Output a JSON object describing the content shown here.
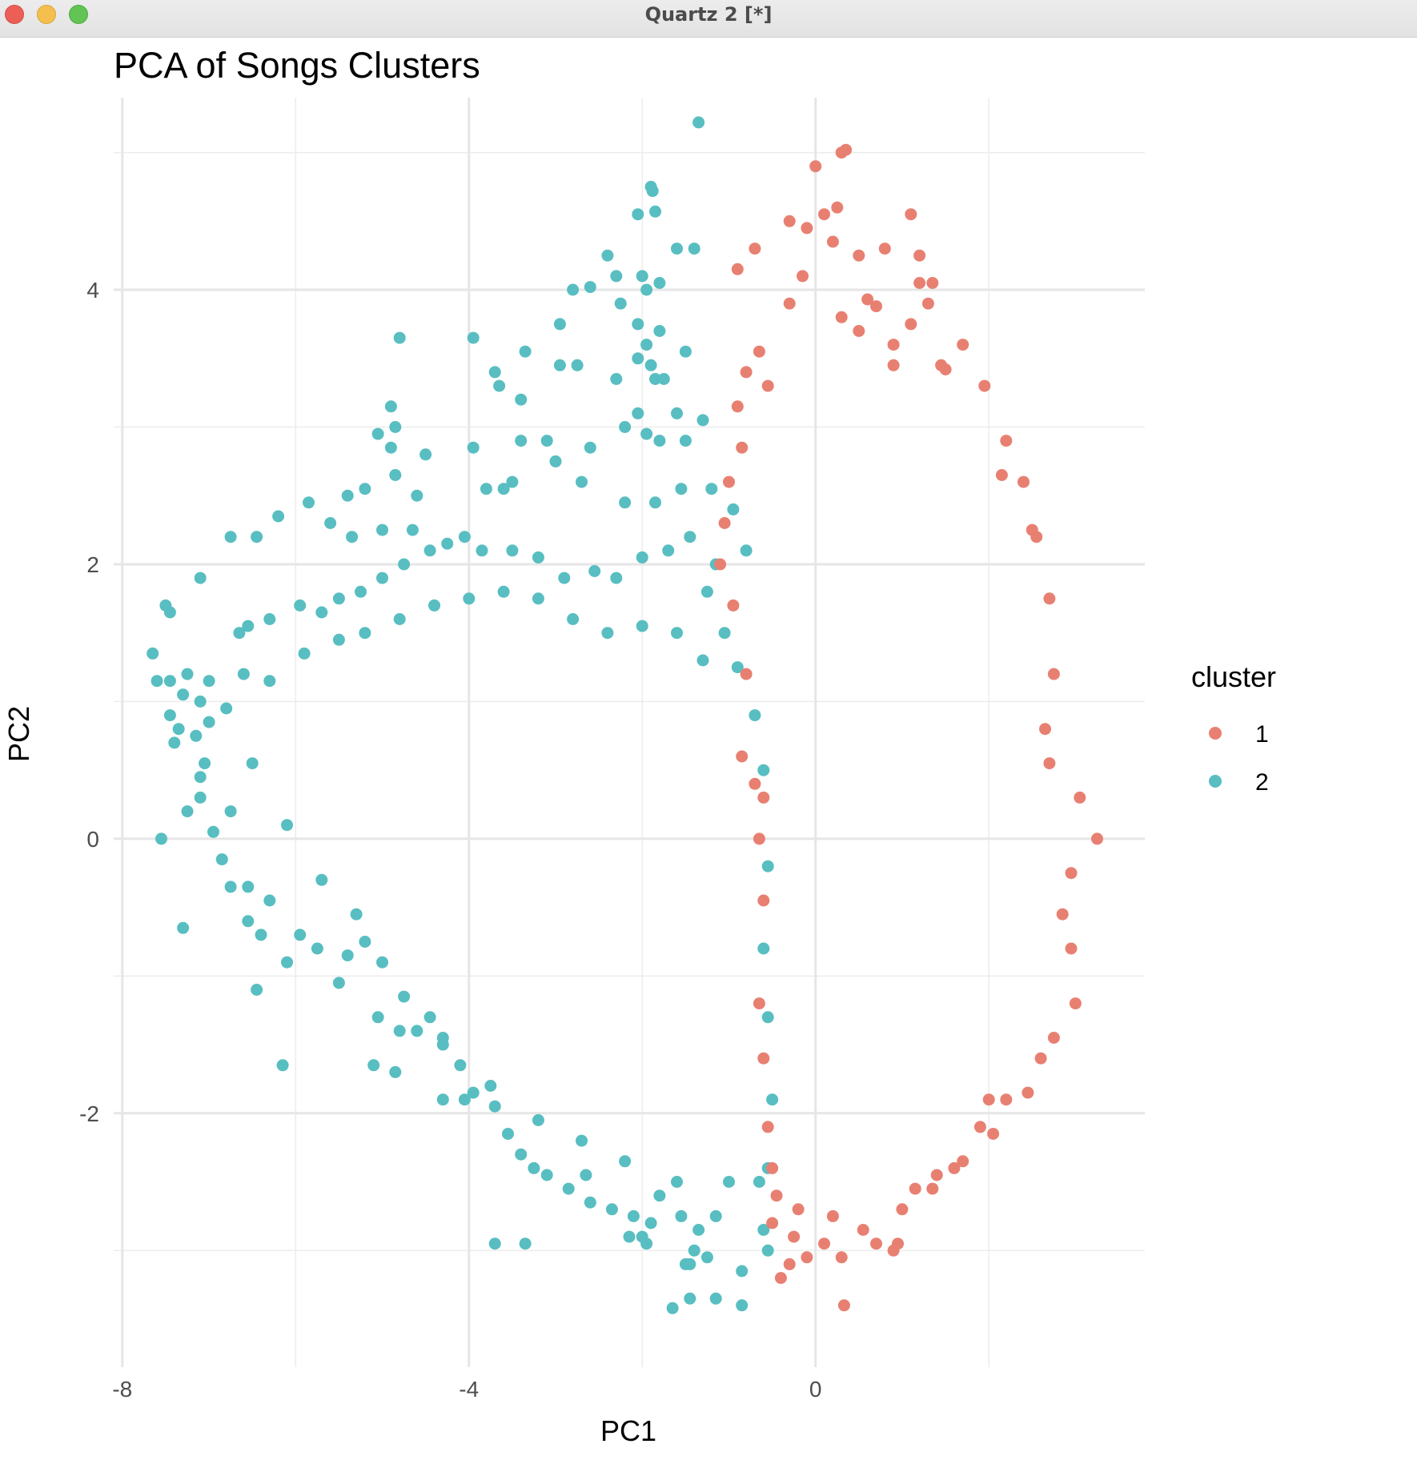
{
  "window": {
    "title": "Quartz 2 [*]"
  },
  "chart_data": {
    "type": "scatter",
    "title": "PCA of Songs Clusters",
    "xlabel": "PC1",
    "ylabel": "PC2",
    "xlim": [
      -8.1,
      3.8
    ],
    "ylim": [
      -3.85,
      5.4
    ],
    "xticks": [
      -8,
      -4,
      0
    ],
    "yticks": [
      -2,
      0,
      2,
      4
    ],
    "grid": true,
    "legend": {
      "title": "cluster",
      "placement": "right",
      "entries": [
        "1",
        "2"
      ]
    },
    "series": [
      {
        "name": "1",
        "color": "#E88072",
        "points": [
          [
            0,
            4.9
          ],
          [
            0.3,
            5.0
          ],
          [
            0.35,
            5.02
          ],
          [
            1.1,
            4.55
          ],
          [
            0.5,
            4.25
          ],
          [
            1.2,
            4.25
          ],
          [
            1.2,
            4.05
          ],
          [
            -0.7,
            4.3
          ],
          [
            -0.9,
            4.15
          ],
          [
            -0.3,
            4.5
          ],
          [
            0.1,
            4.55
          ],
          [
            -0.1,
            4.45
          ],
          [
            0.2,
            4.35
          ],
          [
            0.6,
            3.93
          ],
          [
            0.7,
            3.88
          ],
          [
            1.45,
            3.45
          ],
          [
            1.5,
            3.42
          ],
          [
            1.7,
            3.6
          ],
          [
            1.95,
            3.3
          ],
          [
            2.2,
            2.9
          ],
          [
            2.15,
            2.65
          ],
          [
            2.4,
            2.6
          ],
          [
            2.5,
            2.25
          ],
          [
            2.55,
            2.2
          ],
          [
            2.7,
            1.75
          ],
          [
            2.75,
            1.2
          ],
          [
            2.65,
            0.8
          ],
          [
            2.7,
            0.55
          ],
          [
            3.05,
            0.3
          ],
          [
            3.25,
            0.0
          ],
          [
            2.95,
            -0.25
          ],
          [
            2.85,
            -0.55
          ],
          [
            2.95,
            -0.8
          ],
          [
            3.0,
            -1.2
          ],
          [
            2.75,
            -1.45
          ],
          [
            2.6,
            -1.6
          ],
          [
            2.45,
            -1.85
          ],
          [
            2.0,
            -1.9
          ],
          [
            2.05,
            -2.15
          ],
          [
            1.7,
            -2.35
          ],
          [
            1.35,
            -2.55
          ],
          [
            1.0,
            -2.7
          ],
          [
            0.95,
            -2.95
          ],
          [
            0.9,
            -3.0
          ],
          [
            0.7,
            -2.95
          ],
          [
            0.55,
            -2.85
          ],
          [
            0.3,
            -3.05
          ],
          [
            0.33,
            -3.4
          ],
          [
            0.1,
            -2.95
          ],
          [
            -0.1,
            -3.05
          ],
          [
            -0.3,
            -3.1
          ],
          [
            -0.4,
            -3.2
          ],
          [
            -0.25,
            -2.9
          ],
          [
            -0.5,
            -2.8
          ],
          [
            1.6,
            -2.4
          ],
          [
            1.4,
            -2.45
          ],
          [
            1.15,
            -2.55
          ],
          [
            1.9,
            -2.1
          ],
          [
            2.2,
            -1.9
          ],
          [
            -0.9,
            3.15
          ],
          [
            -0.8,
            3.4
          ],
          [
            -0.65,
            3.55
          ],
          [
            -0.55,
            3.3
          ],
          [
            -0.85,
            2.85
          ],
          [
            -1.0,
            2.6
          ],
          [
            -1.05,
            2.3
          ],
          [
            -1.1,
            2.0
          ],
          [
            -0.95,
            1.7
          ],
          [
            -0.8,
            1.2
          ],
          [
            -0.85,
            0.6
          ],
          [
            -0.7,
            0.4
          ],
          [
            -0.6,
            0.3
          ],
          [
            -0.65,
            0.0
          ],
          [
            -0.6,
            -0.45
          ],
          [
            -0.65,
            -1.2
          ],
          [
            -0.6,
            -1.6
          ],
          [
            -0.55,
            -2.1
          ],
          [
            -0.5,
            -2.4
          ],
          [
            -0.45,
            -2.6
          ],
          [
            -0.2,
            -2.7
          ],
          [
            0.2,
            -2.75
          ],
          [
            1.3,
            3.9
          ],
          [
            1.35,
            4.05
          ],
          [
            1.1,
            3.75
          ],
          [
            0.9,
            3.6
          ],
          [
            0.5,
            3.7
          ],
          [
            0.3,
            3.8
          ],
          [
            -0.3,
            3.9
          ],
          [
            -0.15,
            4.1
          ],
          [
            0.8,
            4.3
          ],
          [
            0.9,
            3.45
          ],
          [
            0.25,
            4.6
          ]
        ]
      },
      {
        "name": "2",
        "color": "#58BEC1",
        "points": [
          [
            -1.35,
            5.22
          ],
          [
            -1.9,
            4.75
          ],
          [
            -1.88,
            4.72
          ],
          [
            -2.05,
            4.55
          ],
          [
            -1.85,
            4.57
          ],
          [
            -1.4,
            4.3
          ],
          [
            -1.6,
            4.3
          ],
          [
            -2.4,
            4.25
          ],
          [
            -2.0,
            4.1
          ],
          [
            -2.3,
            4.1
          ],
          [
            -2.25,
            3.9
          ],
          [
            -1.95,
            4.0
          ],
          [
            -1.8,
            4.05
          ],
          [
            -2.8,
            4.0
          ],
          [
            -2.6,
            4.02
          ],
          [
            -2.05,
            3.75
          ],
          [
            -1.8,
            3.7
          ],
          [
            -1.95,
            3.6
          ],
          [
            -1.5,
            3.55
          ],
          [
            -1.9,
            3.45
          ],
          [
            -2.05,
            3.5
          ],
          [
            -2.3,
            3.35
          ],
          [
            -2.75,
            3.45
          ],
          [
            -2.95,
            3.45
          ],
          [
            -3.35,
            3.55
          ],
          [
            -2.95,
            3.75
          ],
          [
            -1.75,
            3.35
          ],
          [
            -1.85,
            3.35
          ],
          [
            -3.95,
            3.65
          ],
          [
            -4.8,
            3.65
          ],
          [
            -3.7,
            3.4
          ],
          [
            -3.65,
            3.3
          ],
          [
            -3.4,
            3.2
          ],
          [
            -4.9,
            3.15
          ],
          [
            -4.85,
            3.0
          ],
          [
            -5.05,
            2.95
          ],
          [
            -4.9,
            2.85
          ],
          [
            -4.5,
            2.8
          ],
          [
            -3.95,
            2.85
          ],
          [
            -3.4,
            2.9
          ],
          [
            -3.1,
            2.9
          ],
          [
            -3.0,
            2.75
          ],
          [
            -2.6,
            2.85
          ],
          [
            -2.05,
            3.1
          ],
          [
            -2.2,
            3.0
          ],
          [
            -1.6,
            3.1
          ],
          [
            -1.95,
            2.95
          ],
          [
            -1.8,
            2.9
          ],
          [
            -1.3,
            3.05
          ],
          [
            -1.5,
            2.9
          ],
          [
            -4.85,
            2.65
          ],
          [
            -5.2,
            2.55
          ],
          [
            -4.6,
            2.5
          ],
          [
            -3.8,
            2.55
          ],
          [
            -3.6,
            2.55
          ],
          [
            -3.5,
            2.6
          ],
          [
            -2.7,
            2.6
          ],
          [
            -2.2,
            2.45
          ],
          [
            -1.85,
            2.45
          ],
          [
            -1.55,
            2.55
          ],
          [
            -1.2,
            2.55
          ],
          [
            -5.4,
            2.5
          ],
          [
            -5.85,
            2.45
          ],
          [
            -6.2,
            2.35
          ],
          [
            -5.6,
            2.3
          ],
          [
            -5.35,
            2.2
          ],
          [
            -5.0,
            2.25
          ],
          [
            -4.65,
            2.25
          ],
          [
            -6.75,
            2.2
          ],
          [
            -6.45,
            2.2
          ],
          [
            -7.1,
            1.9
          ],
          [
            -7.5,
            1.7
          ],
          [
            -7.45,
            1.65
          ],
          [
            -7.65,
            1.35
          ],
          [
            -7.6,
            1.15
          ],
          [
            -7.45,
            1.15
          ],
          [
            -7.3,
            1.05
          ],
          [
            -7.45,
            0.9
          ],
          [
            -7.35,
            0.8
          ],
          [
            -7.15,
            0.75
          ],
          [
            -7.4,
            0.7
          ],
          [
            -7.0,
            0.85
          ],
          [
            -7.05,
            0.55
          ],
          [
            -7.1,
            0.45
          ],
          [
            -7.1,
            0.3
          ],
          [
            -6.75,
            0.2
          ],
          [
            -7.25,
            0.2
          ],
          [
            -7.55,
            0.0
          ],
          [
            -7.3,
            -0.65
          ],
          [
            -6.95,
            0.05
          ],
          [
            -6.85,
            -0.15
          ],
          [
            -6.75,
            -0.35
          ],
          [
            -6.55,
            -0.35
          ],
          [
            -6.3,
            -0.45
          ],
          [
            -6.55,
            -0.6
          ],
          [
            -6.45,
            -1.1
          ],
          [
            -6.15,
            -1.65
          ],
          [
            -5.95,
            -0.7
          ],
          [
            -5.75,
            -0.8
          ],
          [
            -5.5,
            -1.05
          ],
          [
            -5.4,
            -0.85
          ],
          [
            -5.2,
            -0.75
          ],
          [
            -4.8,
            -1.4
          ],
          [
            -5.05,
            -1.3
          ],
          [
            -4.6,
            -1.4
          ],
          [
            -4.3,
            -1.5
          ],
          [
            -5.1,
            -1.65
          ],
          [
            -4.85,
            -1.7
          ],
          [
            -4.3,
            -1.9
          ],
          [
            -4.05,
            -1.9
          ],
          [
            -3.95,
            -1.85
          ],
          [
            -3.7,
            -1.95
          ],
          [
            -3.55,
            -2.15
          ],
          [
            -3.4,
            -2.3
          ],
          [
            -3.25,
            -2.4
          ],
          [
            -3.1,
            -2.45
          ],
          [
            -2.85,
            -2.55
          ],
          [
            -2.65,
            -2.45
          ],
          [
            -2.6,
            -2.65
          ],
          [
            -2.35,
            -2.7
          ],
          [
            -2.1,
            -2.75
          ],
          [
            -1.9,
            -2.8
          ],
          [
            -1.8,
            -2.6
          ],
          [
            -1.55,
            -2.75
          ],
          [
            -1.35,
            -2.85
          ],
          [
            -1.15,
            -2.75
          ],
          [
            -2.0,
            -2.9
          ],
          [
            -2.15,
            -2.9
          ],
          [
            -1.95,
            -2.95
          ],
          [
            -1.4,
            -3.0
          ],
          [
            -1.25,
            -3.05
          ],
          [
            -1.5,
            -3.1
          ],
          [
            -0.85,
            -3.15
          ],
          [
            -0.55,
            -3.0
          ],
          [
            -0.6,
            -2.85
          ],
          [
            -1.45,
            -3.1
          ],
          [
            -1.45,
            -3.35
          ],
          [
            -1.15,
            -3.35
          ],
          [
            -0.85,
            -3.4
          ],
          [
            -1.65,
            -3.42
          ],
          [
            -3.7,
            -2.95
          ],
          [
            -3.35,
            -2.95
          ],
          [
            -4.3,
            -1.45
          ],
          [
            -5.0,
            -0.9
          ],
          [
            -6.1,
            -0.9
          ],
          [
            -6.4,
            -0.7
          ],
          [
            -7.1,
            1.0
          ],
          [
            -7.25,
            1.2
          ],
          [
            -6.65,
            1.5
          ],
          [
            -6.55,
            1.55
          ],
          [
            -6.3,
            1.6
          ],
          [
            -5.95,
            1.7
          ],
          [
            -5.7,
            1.65
          ],
          [
            -5.5,
            1.75
          ],
          [
            -5.25,
            1.8
          ],
          [
            -5.0,
            1.9
          ],
          [
            -4.75,
            2.0
          ],
          [
            -4.45,
            2.1
          ],
          [
            -4.25,
            2.15
          ],
          [
            -4.05,
            2.2
          ],
          [
            -3.85,
            2.1
          ],
          [
            -3.5,
            2.1
          ],
          [
            -3.2,
            2.05
          ],
          [
            -2.9,
            1.9
          ],
          [
            -2.55,
            1.95
          ],
          [
            -2.3,
            1.9
          ],
          [
            -2.0,
            2.05
          ],
          [
            -1.7,
            2.1
          ],
          [
            -1.45,
            2.2
          ],
          [
            -1.15,
            2.0
          ],
          [
            -0.95,
            2.4
          ],
          [
            -0.8,
            2.1
          ],
          [
            -1.25,
            1.8
          ],
          [
            -1.05,
            1.5
          ],
          [
            -0.9,
            1.25
          ],
          [
            -0.7,
            0.9
          ],
          [
            -0.6,
            0.5
          ],
          [
            -0.55,
            -0.2
          ],
          [
            -0.6,
            -0.8
          ],
          [
            -0.55,
            -1.3
          ],
          [
            -0.5,
            -1.9
          ],
          [
            -0.55,
            -2.4
          ],
          [
            -0.65,
            -2.5
          ],
          [
            -1.0,
            -2.5
          ],
          [
            -1.6,
            -2.5
          ],
          [
            -2.2,
            -2.35
          ],
          [
            -2.7,
            -2.2
          ],
          [
            -3.2,
            -2.05
          ],
          [
            -3.75,
            -1.8
          ],
          [
            -4.1,
            -1.65
          ],
          [
            -4.45,
            -1.3
          ],
          [
            -4.75,
            -1.15
          ],
          [
            -5.3,
            -0.55
          ],
          [
            -5.7,
            -0.3
          ],
          [
            -6.1,
            0.1
          ],
          [
            -6.5,
            0.55
          ],
          [
            -6.8,
            0.95
          ],
          [
            -7.0,
            1.15
          ],
          [
            -6.6,
            1.2
          ],
          [
            -6.3,
            1.15
          ],
          [
            -5.9,
            1.35
          ],
          [
            -5.5,
            1.45
          ],
          [
            -5.2,
            1.5
          ],
          [
            -4.8,
            1.6
          ],
          [
            -4.4,
            1.7
          ],
          [
            -4.0,
            1.75
          ],
          [
            -3.6,
            1.8
          ],
          [
            -3.2,
            1.75
          ],
          [
            -2.8,
            1.6
          ],
          [
            -2.4,
            1.5
          ],
          [
            -2.0,
            1.55
          ],
          [
            -1.6,
            1.5
          ],
          [
            -1.3,
            1.3
          ]
        ]
      }
    ]
  }
}
